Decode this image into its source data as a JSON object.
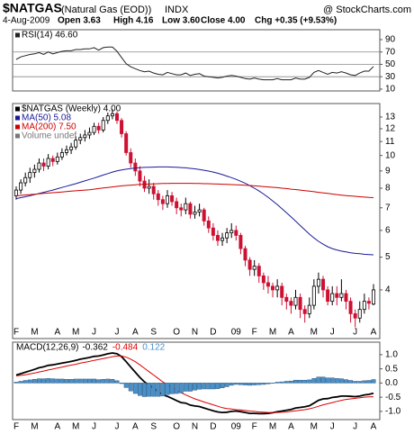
{
  "header": {
    "symbol": "$NATGAS",
    "name": "(Natural Gas (EOD))",
    "exchange": "INDX",
    "credit": "@ StockCharts.com",
    "date": "4-Aug-2009",
    "open": "Open 3.63",
    "high": "High 4.16",
    "low": "Low 3.60",
    "close": "Close 4.00",
    "change": "Chg +0.35 (+9.53%)"
  },
  "chart_data": [
    {
      "type": "line",
      "ylim": [
        7,
        106
      ],
      "yticks": [
        10,
        30,
        50,
        70,
        90
      ],
      "levels": [
        30,
        50,
        70
      ],
      "series": [
        {
          "name": "RSI(14) 46.60",
          "color": "#222222",
          "values": [
            58,
            62,
            64,
            66,
            67,
            69,
            66,
            70,
            67,
            69,
            71,
            72,
            72,
            74,
            74,
            75,
            75,
            77,
            73,
            77,
            78,
            78,
            71,
            61,
            51,
            46,
            43,
            40,
            38,
            39,
            36,
            34,
            33,
            37,
            35,
            33,
            33,
            36,
            32,
            34,
            35,
            31,
            30,
            29,
            28,
            29,
            31,
            32,
            31,
            29,
            27,
            26,
            28,
            26,
            25,
            25,
            25,
            27,
            25,
            25,
            25,
            28,
            26,
            26,
            29,
            37,
            40,
            37,
            34,
            37,
            36,
            38,
            36,
            33,
            32,
            36,
            39,
            39,
            46.6
          ]
        }
      ]
    },
    {
      "type": "candlestick",
      "log": true,
      "ylim": [
        2.87,
        14.25
      ],
      "yticks": [
        4,
        5,
        6,
        7,
        8,
        9,
        10,
        11,
        12,
        13
      ],
      "categories": [
        "F",
        null,
        null,
        null,
        "M",
        null,
        null,
        null,
        null,
        "A",
        null,
        null,
        null,
        "M",
        null,
        null,
        null,
        "J",
        null,
        null,
        null,
        null,
        "J",
        null,
        null,
        null,
        "A",
        null,
        null,
        null,
        "S",
        null,
        null,
        null,
        null,
        "O",
        null,
        null,
        null,
        "N",
        null,
        null,
        null,
        "D",
        null,
        null,
        null,
        null,
        "09",
        null,
        null,
        null,
        "F",
        null,
        null,
        null,
        "M",
        null,
        null,
        null,
        "A",
        null,
        null,
        null,
        null,
        "M",
        null,
        null,
        null,
        "J",
        null,
        null,
        null,
        null,
        "J",
        null,
        null,
        null,
        "A"
      ],
      "series": [
        {
          "name": "$NATGAS (Weekly) 4.00",
          "color": "#000000",
          "down_color": "#cc1133",
          "open": [
            7.6,
            7.9,
            8.3,
            8.6,
            8.9,
            9.1,
            9.5,
            9.3,
            9.8,
            9.6,
            9.9,
            10.2,
            10.4,
            10.6,
            11.1,
            11.3,
            11.5,
            11.7,
            12.2,
            11.9,
            12.7,
            13.1,
            13.3,
            12.7,
            11.6,
            10.2,
            9.5,
            9.0,
            8.4,
            8.0,
            8.1,
            7.7,
            7.4,
            7.2,
            7.6,
            7.3,
            7.0,
            6.9,
            7.2,
            6.7,
            6.8,
            6.9,
            6.4,
            6.1,
            5.8,
            5.6,
            5.7,
            5.9,
            6.0,
            5.8,
            5.3,
            4.9,
            4.6,
            4.7,
            4.4,
            4.2,
            4.1,
            4.0,
            4.1,
            3.8,
            3.7,
            3.6,
            3.8,
            3.5,
            3.4,
            3.6,
            4.1,
            4.3,
            4.0,
            3.7,
            3.9,
            3.8,
            3.9,
            3.7,
            3.4,
            3.3,
            3.5,
            3.7,
            3.63
          ],
          "high": [
            8.1,
            8.5,
            8.9,
            9.2,
            9.4,
            9.8,
            9.8,
            10.1,
            10.0,
            10.2,
            10.5,
            10.7,
            10.9,
            11.4,
            11.6,
            11.9,
            12.1,
            12.5,
            12.5,
            13.0,
            13.4,
            13.7,
            13.5,
            12.9,
            11.8,
            10.5,
            9.8,
            9.3,
            8.7,
            8.5,
            8.3,
            7.9,
            7.6,
            7.9,
            7.8,
            7.5,
            7.2,
            7.5,
            7.3,
            7.1,
            7.2,
            7.0,
            6.6,
            6.3,
            6.0,
            5.9,
            6.1,
            6.3,
            6.2,
            5.9,
            5.4,
            5.0,
            4.9,
            4.8,
            4.5,
            4.4,
            4.2,
            4.3,
            4.2,
            3.9,
            3.8,
            4.0,
            3.9,
            3.6,
            3.8,
            4.3,
            4.5,
            4.4,
            4.1,
            4.1,
            4.1,
            4.3,
            4.0,
            3.8,
            3.5,
            3.7,
            3.9,
            3.8,
            4.16
          ],
          "low": [
            7.4,
            7.7,
            8.1,
            8.3,
            8.6,
            8.9,
            9.0,
            9.1,
            9.3,
            9.4,
            9.7,
            10.0,
            10.1,
            10.4,
            10.8,
            11.0,
            11.2,
            11.5,
            11.6,
            11.7,
            12.4,
            12.8,
            12.4,
            11.3,
            10.0,
            9.2,
            8.7,
            8.1,
            7.8,
            7.7,
            7.4,
            7.1,
            6.9,
            7.0,
            7.1,
            6.7,
            6.6,
            6.7,
            6.5,
            6.5,
            6.6,
            6.2,
            5.9,
            5.6,
            5.4,
            5.4,
            5.5,
            5.7,
            5.6,
            5.1,
            4.7,
            4.4,
            4.4,
            4.2,
            4.0,
            3.9,
            3.8,
            3.8,
            3.6,
            3.5,
            3.4,
            3.5,
            3.3,
            3.2,
            3.3,
            3.5,
            3.9,
            3.8,
            3.6,
            3.6,
            3.6,
            3.7,
            3.5,
            3.2,
            3.1,
            3.2,
            3.4,
            3.5,
            3.6
          ],
          "close": [
            7.9,
            8.3,
            8.6,
            8.9,
            9.1,
            9.5,
            9.3,
            9.8,
            9.6,
            9.9,
            10.2,
            10.4,
            10.6,
            11.1,
            11.3,
            11.5,
            11.7,
            12.2,
            11.9,
            12.7,
            13.1,
            13.3,
            12.7,
            11.6,
            10.2,
            9.5,
            9.0,
            8.4,
            8.0,
            8.1,
            7.7,
            7.4,
            7.2,
            7.6,
            7.3,
            7.0,
            6.9,
            7.2,
            6.7,
            6.8,
            6.9,
            6.4,
            6.1,
            5.8,
            5.6,
            5.7,
            5.9,
            6.0,
            5.8,
            5.3,
            4.9,
            4.6,
            4.7,
            4.4,
            4.2,
            4.1,
            4.0,
            4.1,
            3.8,
            3.7,
            3.6,
            3.8,
            3.5,
            3.4,
            3.6,
            4.1,
            4.3,
            4.0,
            3.7,
            3.9,
            3.8,
            3.9,
            3.7,
            3.4,
            3.3,
            3.5,
            3.7,
            3.65,
            4.0
          ]
        },
        {
          "name": "MA(50) 5.08",
          "color": "#1a1a99",
          "values": [
            7.45,
            7.5,
            7.55,
            7.6,
            7.66,
            7.72,
            7.78,
            7.84,
            7.9,
            7.97,
            8.04,
            8.11,
            8.18,
            8.25,
            8.33,
            8.41,
            8.49,
            8.57,
            8.66,
            8.75,
            8.84,
            8.93,
            9.0,
            9.06,
            9.11,
            9.15,
            9.18,
            9.2,
            9.22,
            9.23,
            9.24,
            9.25,
            9.25,
            9.25,
            9.24,
            9.23,
            9.21,
            9.19,
            9.16,
            9.13,
            9.09,
            9.04,
            8.99,
            8.93,
            8.86,
            8.78,
            8.69,
            8.6,
            8.5,
            8.39,
            8.27,
            8.14,
            8.0,
            7.85,
            7.69,
            7.52,
            7.34,
            7.15,
            6.96,
            6.77,
            6.58,
            6.39,
            6.2,
            6.02,
            5.85,
            5.7,
            5.57,
            5.46,
            5.37,
            5.3,
            5.25,
            5.21,
            5.18,
            5.15,
            5.13,
            5.12,
            5.1,
            5.09,
            5.08
          ]
        },
        {
          "name": "MA(200) 7.50",
          "color": "#cc0000",
          "values": [
            7.6,
            7.62,
            7.64,
            7.66,
            7.68,
            7.7,
            7.72,
            7.74,
            7.76,
            7.78,
            7.8,
            7.82,
            7.84,
            7.86,
            7.88,
            7.9,
            7.92,
            7.95,
            7.98,
            8.01,
            8.04,
            8.07,
            8.1,
            8.13,
            8.15,
            8.17,
            8.19,
            8.21,
            8.22,
            8.23,
            8.24,
            8.25,
            8.26,
            8.26,
            8.27,
            8.27,
            8.27,
            8.27,
            8.27,
            8.26,
            8.26,
            8.25,
            8.25,
            8.24,
            8.23,
            8.22,
            8.21,
            8.2,
            8.19,
            8.18,
            8.16,
            8.15,
            8.13,
            8.11,
            8.09,
            8.07,
            8.05,
            8.03,
            8.0,
            7.98,
            7.95,
            7.93,
            7.9,
            7.87,
            7.84,
            7.81,
            7.78,
            7.75,
            7.72,
            7.69,
            7.66,
            7.63,
            7.61,
            7.59,
            7.57,
            7.55,
            7.53,
            7.51,
            7.5
          ]
        }
      ],
      "legend_extra": [
        "Volume undef"
      ]
    },
    {
      "type": "line",
      "label": "MACD(12,26,9)",
      "ylim": [
        -1.29,
        1.44
      ],
      "yticks": [
        {
          "value": 1,
          "label": "1.0"
        },
        0.5,
        {
          "value": 0,
          "label": "0.0"
        },
        -0.5,
        {
          "value": -1,
          "label": "-1.0"
        }
      ],
      "categories": [
        "F",
        null,
        null,
        null,
        "M",
        null,
        null,
        null,
        null,
        "A",
        null,
        null,
        null,
        "M",
        null,
        null,
        null,
        "J",
        null,
        null,
        null,
        null,
        "J",
        null,
        null,
        null,
        "A",
        null,
        null,
        null,
        "S",
        null,
        null,
        null,
        null,
        "O",
        null,
        null,
        null,
        "N",
        null,
        null,
        null,
        "D",
        null,
        null,
        null,
        null,
        "09",
        null,
        null,
        null,
        "F",
        null,
        null,
        null,
        "M",
        null,
        null,
        null,
        "A",
        null,
        null,
        null,
        null,
        "M",
        null,
        null,
        null,
        "J",
        null,
        null,
        null,
        null,
        "J",
        null,
        null,
        null,
        "A"
      ],
      "series": [
        {
          "name": "-0.362",
          "color": "#000000",
          "values": [
            0.28,
            0.33,
            0.38,
            0.43,
            0.48,
            0.54,
            0.57,
            0.62,
            0.64,
            0.67,
            0.7,
            0.73,
            0.76,
            0.8,
            0.84,
            0.87,
            0.9,
            0.94,
            0.95,
            0.99,
            1.03,
            1.06,
            1.03,
            0.93,
            0.75,
            0.56,
            0.38,
            0.2,
            0.04,
            -0.07,
            -0.19,
            -0.31,
            -0.42,
            -0.47,
            -0.54,
            -0.62,
            -0.69,
            -0.71,
            -0.78,
            -0.81,
            -0.83,
            -0.88,
            -0.93,
            -0.98,
            -1.02,
            -1.04,
            -1.03,
            -1.0,
            -0.99,
            -1.01,
            -1.04,
            -1.07,
            -1.07,
            -1.08,
            -1.08,
            -1.07,
            -1.05,
            -1.01,
            -0.99,
            -0.96,
            -0.93,
            -0.88,
            -0.86,
            -0.84,
            -0.8,
            -0.71,
            -0.61,
            -0.56,
            -0.55,
            -0.51,
            -0.49,
            -0.46,
            -0.46,
            -0.47,
            -0.48,
            -0.46,
            -0.42,
            -0.4,
            -0.362
          ]
        },
        {
          "name": "-0.484",
          "color": "#dd0000",
          "values": [
            0.25,
            0.27,
            0.29,
            0.32,
            0.35,
            0.39,
            0.42,
            0.46,
            0.49,
            0.53,
            0.56,
            0.6,
            0.63,
            0.66,
            0.7,
            0.73,
            0.76,
            0.8,
            0.83,
            0.86,
            0.89,
            0.93,
            0.95,
            0.95,
            0.91,
            0.84,
            0.75,
            0.64,
            0.52,
            0.4,
            0.28,
            0.16,
            0.04,
            -0.06,
            -0.16,
            -0.25,
            -0.34,
            -0.42,
            -0.49,
            -0.56,
            -0.61,
            -0.67,
            -0.72,
            -0.77,
            -0.82,
            -0.87,
            -0.9,
            -0.92,
            -0.94,
            -0.95,
            -0.97,
            -0.99,
            -1.0,
            -1.02,
            -1.03,
            -1.04,
            -1.04,
            -1.04,
            -1.03,
            -1.02,
            -1.0,
            -0.98,
            -0.96,
            -0.94,
            -0.91,
            -0.87,
            -0.82,
            -0.77,
            -0.73,
            -0.69,
            -0.65,
            -0.61,
            -0.58,
            -0.56,
            -0.54,
            -0.52,
            -0.5,
            -0.49,
            -0.484
          ]
        },
        {
          "name": "0.122",
          "color": "#4a90c8",
          "kind": "histogram",
          "values": [
            0.03,
            0.06,
            0.09,
            0.11,
            0.13,
            0.15,
            0.15,
            0.16,
            0.15,
            0.14,
            0.14,
            0.13,
            0.13,
            0.14,
            0.14,
            0.14,
            0.14,
            0.14,
            0.12,
            0.13,
            0.14,
            0.13,
            0.08,
            -0.02,
            -0.16,
            -0.28,
            -0.37,
            -0.44,
            -0.48,
            -0.47,
            -0.47,
            -0.47,
            -0.46,
            -0.41,
            -0.38,
            -0.37,
            -0.35,
            -0.29,
            -0.29,
            -0.25,
            -0.22,
            -0.21,
            -0.21,
            -0.21,
            -0.2,
            -0.17,
            -0.13,
            -0.08,
            -0.05,
            -0.06,
            -0.07,
            -0.08,
            -0.07,
            -0.06,
            -0.05,
            -0.03,
            -0.01,
            0.03,
            0.04,
            0.06,
            0.07,
            0.1,
            0.1,
            0.1,
            0.11,
            0.16,
            0.21,
            0.21,
            0.18,
            0.18,
            0.16,
            0.15,
            0.12,
            0.09,
            0.06,
            0.06,
            0.08,
            0.09,
            0.122
          ]
        }
      ]
    }
  ]
}
